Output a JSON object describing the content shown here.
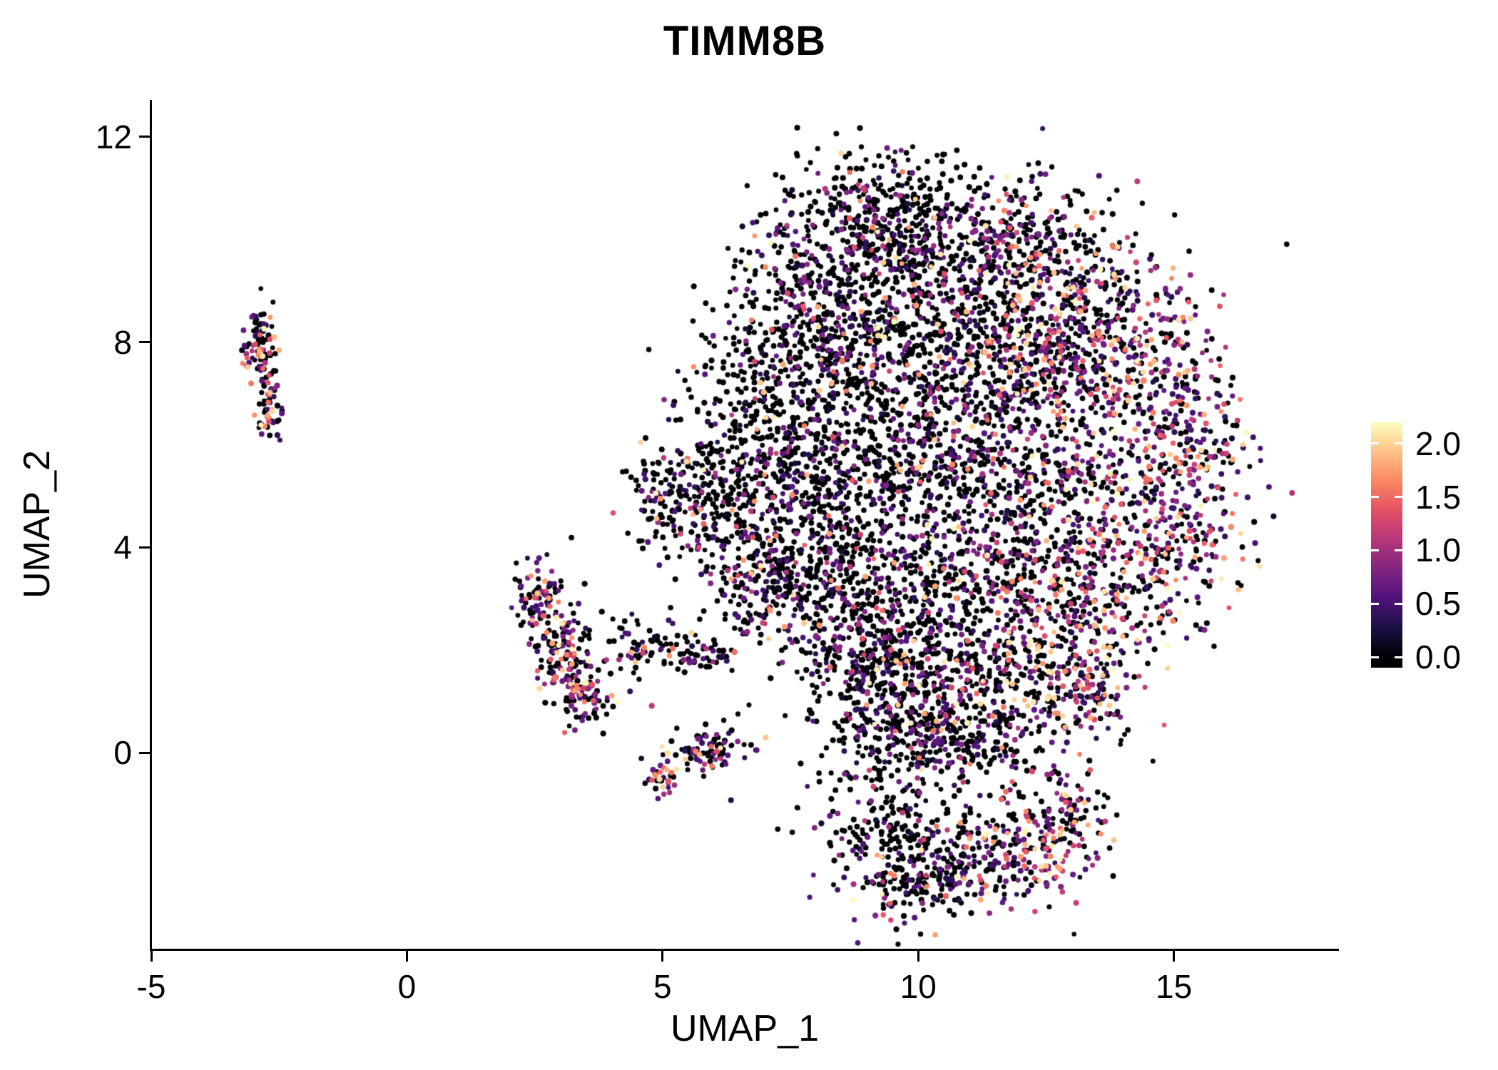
{
  "chart_data": {
    "type": "scatter",
    "title": "TIMM8B",
    "xlabel": "UMAP_1",
    "ylabel": "UMAP_2",
    "x_ticks": {
      "values": [
        -5,
        0,
        5,
        10,
        15
      ],
      "labels": [
        "-5",
        "0",
        "5",
        "10",
        "15"
      ]
    },
    "y_ticks": {
      "values": [
        0,
        4,
        8,
        12
      ],
      "labels": [
        "0",
        "4",
        "8",
        "12"
      ]
    },
    "xlim": [
      -5,
      18.2
    ],
    "ylim": [
      -3.82,
      12.72
    ],
    "grid": false,
    "legend": {
      "position": "right",
      "min": 0.0,
      "max": 2.2,
      "ticks": [
        {
          "value": 2.0,
          "label": "2.0"
        },
        {
          "value": 1.5,
          "label": "1.5"
        },
        {
          "value": 1.0,
          "label": "1.0"
        },
        {
          "value": 0.5,
          "label": "0.5"
        },
        {
          "value": 0.0,
          "label": "0.0"
        }
      ]
    },
    "colormap": "magma",
    "colormap_stops": [
      "#000004",
      "#1c1044",
      "#4f127b",
      "#812581",
      "#b5367a",
      "#e55064",
      "#fb8761",
      "#fec287",
      "#fcfdbf"
    ],
    "point_radius": 3.7,
    "seed": 42,
    "zero_color": "#000004",
    "secondary_low_expression_prob": 0.18,
    "clusters": [
      {
        "x": -2.85,
        "y": 8.05,
        "sx": 0.16,
        "sy": 0.42,
        "n": 75,
        "p": 0.5
      },
      {
        "x": -2.75,
        "y": 7.3,
        "sx": 0.1,
        "sy": 0.3,
        "n": 25,
        "p": 0.4
      },
      {
        "x": -2.7,
        "y": 6.6,
        "sx": 0.13,
        "sy": 0.3,
        "n": 40,
        "p": 0.5
      },
      {
        "x": 2.55,
        "y": 2.95,
        "sx": 0.22,
        "sy": 0.38,
        "n": 90,
        "p": 0.45
      },
      {
        "x": 3.0,
        "y": 2.0,
        "sx": 0.3,
        "sy": 0.45,
        "n": 120,
        "p": 0.35
      },
      {
        "x": 3.5,
        "y": 1.05,
        "sx": 0.25,
        "sy": 0.3,
        "n": 70,
        "p": 0.4
      },
      {
        "x": 4.6,
        "y": 2.15,
        "sx": 0.55,
        "sy": 0.25,
        "n": 70,
        "p": 0.12
      },
      {
        "x": 5.8,
        "y": 1.95,
        "sx": 0.35,
        "sy": 0.18,
        "n": 45,
        "p": 0.1
      },
      {
        "x": 5.9,
        "y": 0.05,
        "sx": 0.38,
        "sy": 0.22,
        "n": 80,
        "p": 0.35
      },
      {
        "x": 5.0,
        "y": -0.5,
        "sx": 0.16,
        "sy": 0.16,
        "n": 30,
        "p": 0.5
      },
      {
        "x": 9.3,
        "y": 10.7,
        "sx": 0.8,
        "sy": 0.55,
        "n": 220,
        "p": 0.1
      },
      {
        "x": 8.2,
        "y": 9.4,
        "sx": 0.85,
        "sy": 0.8,
        "n": 300,
        "p": 0.08
      },
      {
        "x": 10.2,
        "y": 9.7,
        "sx": 0.9,
        "sy": 0.75,
        "n": 300,
        "p": 0.12
      },
      {
        "x": 11.9,
        "y": 10.0,
        "sx": 0.7,
        "sy": 0.6,
        "n": 180,
        "p": 0.3
      },
      {
        "x": 13.0,
        "y": 9.0,
        "sx": 0.8,
        "sy": 0.8,
        "n": 240,
        "p": 0.4
      },
      {
        "x": 7.2,
        "y": 7.6,
        "sx": 0.85,
        "sy": 0.9,
        "n": 280,
        "p": 0.1
      },
      {
        "x": 9.0,
        "y": 7.6,
        "sx": 0.9,
        "sy": 0.9,
        "n": 320,
        "p": 0.1
      },
      {
        "x": 10.9,
        "y": 7.8,
        "sx": 0.85,
        "sy": 0.8,
        "n": 280,
        "p": 0.18
      },
      {
        "x": 12.6,
        "y": 7.4,
        "sx": 0.8,
        "sy": 0.8,
        "n": 260,
        "p": 0.38
      },
      {
        "x": 14.2,
        "y": 7.7,
        "sx": 0.8,
        "sy": 0.9,
        "n": 250,
        "p": 0.5
      },
      {
        "x": 15.3,
        "y": 6.1,
        "sx": 0.6,
        "sy": 0.9,
        "n": 210,
        "p": 0.5
      },
      {
        "x": 6.2,
        "y": 5.3,
        "sx": 0.7,
        "sy": 0.8,
        "n": 230,
        "p": 0.15
      },
      {
        "x": 5.2,
        "y": 5.0,
        "sx": 0.45,
        "sy": 0.5,
        "n": 110,
        "p": 0.2
      },
      {
        "x": 7.8,
        "y": 5.3,
        "sx": 0.85,
        "sy": 0.85,
        "n": 280,
        "p": 0.08
      },
      {
        "x": 9.6,
        "y": 5.4,
        "sx": 0.85,
        "sy": 0.85,
        "n": 280,
        "p": 0.1
      },
      {
        "x": 11.4,
        "y": 5.4,
        "sx": 0.8,
        "sy": 0.8,
        "n": 250,
        "p": 0.22
      },
      {
        "x": 13.2,
        "y": 5.1,
        "sx": 0.8,
        "sy": 0.8,
        "n": 250,
        "p": 0.42
      },
      {
        "x": 15.0,
        "y": 3.9,
        "sx": 0.7,
        "sy": 0.7,
        "n": 190,
        "p": 0.5
      },
      {
        "x": 6.9,
        "y": 3.6,
        "sx": 0.6,
        "sy": 0.7,
        "n": 170,
        "p": 0.15
      },
      {
        "x": 8.3,
        "y": 3.3,
        "sx": 0.8,
        "sy": 0.8,
        "n": 250,
        "p": 0.08
      },
      {
        "x": 10.0,
        "y": 3.1,
        "sx": 0.85,
        "sy": 0.8,
        "n": 250,
        "p": 0.12
      },
      {
        "x": 11.8,
        "y": 3.3,
        "sx": 0.8,
        "sy": 0.7,
        "n": 230,
        "p": 0.28
      },
      {
        "x": 13.5,
        "y": 2.9,
        "sx": 0.75,
        "sy": 0.7,
        "n": 210,
        "p": 0.4
      },
      {
        "x": 8.8,
        "y": 1.6,
        "sx": 0.7,
        "sy": 0.7,
        "n": 200,
        "p": 0.08
      },
      {
        "x": 10.3,
        "y": 1.3,
        "sx": 0.8,
        "sy": 0.7,
        "n": 220,
        "p": 0.15
      },
      {
        "x": 12.0,
        "y": 1.4,
        "sx": 0.8,
        "sy": 0.6,
        "n": 190,
        "p": 0.3
      },
      {
        "x": 13.3,
        "y": 1.1,
        "sx": 0.5,
        "sy": 0.5,
        "n": 120,
        "p": 0.5
      },
      {
        "x": 9.6,
        "y": 0.3,
        "sx": 0.7,
        "sy": 0.5,
        "n": 150,
        "p": 0.1
      },
      {
        "x": 11.0,
        "y": 0.1,
        "sx": 0.8,
        "sy": 0.5,
        "n": 150,
        "p": 0.2
      },
      {
        "x": 9.3,
        "y": -1.5,
        "sx": 0.7,
        "sy": 0.7,
        "n": 170,
        "p": 0.1
      },
      {
        "x": 10.8,
        "y": -2.0,
        "sx": 0.8,
        "sy": 0.6,
        "n": 170,
        "p": 0.25
      },
      {
        "x": 12.2,
        "y": -1.9,
        "sx": 0.7,
        "sy": 0.55,
        "n": 150,
        "p": 0.5
      },
      {
        "x": 12.9,
        "y": -1.1,
        "sx": 0.4,
        "sy": 0.5,
        "n": 90,
        "p": 0.5
      },
      {
        "x": 9.9,
        "y": -2.6,
        "sx": 0.6,
        "sy": 0.3,
        "n": 90,
        "p": 0.15
      },
      {
        "x": 8.5,
        "y": 4.0,
        "sx": 2.2,
        "sy": 2.4,
        "n": 120,
        "p": 0.2
      },
      {
        "x": 12.0,
        "y": 8.0,
        "sx": 2.0,
        "sy": 1.8,
        "n": 100,
        "p": 0.3
      }
    ]
  }
}
